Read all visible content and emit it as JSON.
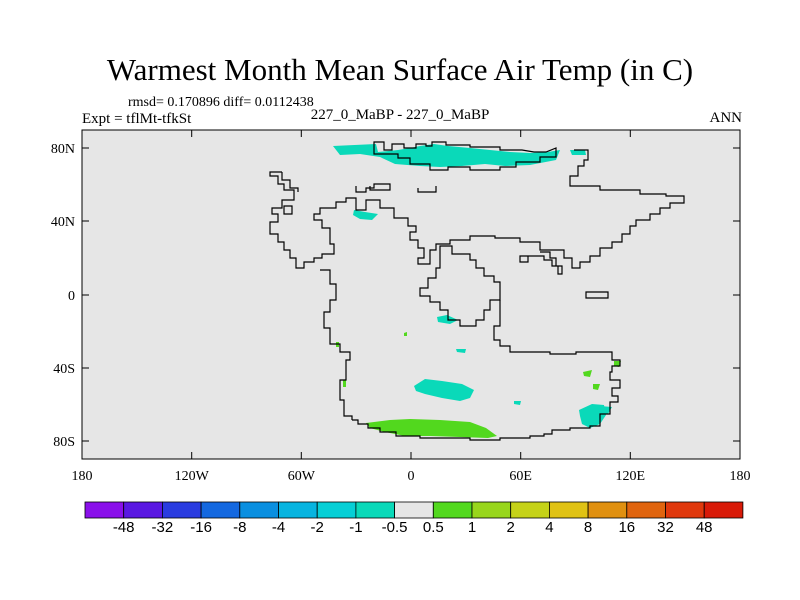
{
  "title": "Warmest Month Mean Surface Air Temp (in C)",
  "stats": "rmsd= 0.170896 diff= 0.0112438",
  "experiment": "Expt = tflMt-tfkSt",
  "comparison": "227_0_MaBP - 227_0_MaBP",
  "season": "ANN",
  "map": {
    "projection": "cylindrical equidistant",
    "lon_range": [
      -180,
      180
    ],
    "lat_range": [
      -90,
      90
    ],
    "x_ticks": [
      "180",
      "120W",
      "60W",
      "0",
      "60E",
      "120E",
      "180"
    ],
    "y_ticks": [
      "80N",
      "40N",
      "0",
      "40S",
      "80S"
    ],
    "background_color": "#e6e6e6"
  },
  "colorbar": {
    "labels": [
      "-48",
      "-32",
      "-16",
      "-8",
      "-4",
      "-2",
      "-1",
      "-0.5",
      "0.5",
      "1",
      "2",
      "4",
      "8",
      "16",
      "32",
      "48"
    ],
    "colors": [
      "#8a10ea",
      "#5a18e2",
      "#2a3ce0",
      "#1468e0",
      "#0a8fe0",
      "#07b4e0",
      "#06cfd6",
      "#0ad9b9",
      "#e6e6e6",
      "#52d81e",
      "#98d61c",
      "#c5d218",
      "#e0c214",
      "#e09010",
      "#e0640e",
      "#e0380c",
      "#d81a08"
    ]
  }
}
